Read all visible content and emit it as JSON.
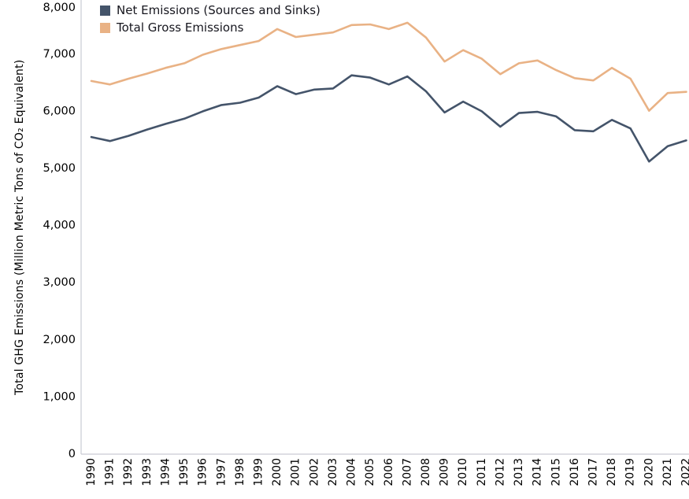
{
  "chart_data": {
    "type": "line",
    "title": "",
    "xlabel": "",
    "ylabel": "Total GHG Emissions (Million Metric Tons of CO₂ Equivalent)",
    "ylim": [
      0,
      8000
    ],
    "grid": false,
    "legend_position": "top-left-inside",
    "categories": [
      "1990",
      "1991",
      "1992",
      "1993",
      "1994",
      "1995",
      "1996",
      "1997",
      "1998",
      "1999",
      "2000",
      "2001",
      "2002",
      "2003",
      "2004",
      "2005",
      "2006",
      "2007",
      "2008",
      "2009",
      "2010",
      "2011",
      "2012",
      "2013",
      "2014",
      "2015",
      "2016",
      "2017",
      "2018",
      "2019",
      "2020",
      "2021",
      "2022"
    ],
    "series": [
      {
        "name": "Net Emissions (Sources and Sinks)",
        "color": "#44546A",
        "values": [
          5550,
          5480,
          5570,
          5680,
          5780,
          5870,
          6000,
          6110,
          6150,
          6240,
          6440,
          6300,
          6380,
          6400,
          6630,
          6590,
          6470,
          6610,
          6350,
          5980,
          6170,
          6000,
          5730,
          5970,
          5990,
          5910,
          5670,
          5650,
          5850,
          5700,
          5120,
          5390,
          5490
        ]
      },
      {
        "name": "Total Gross Emissions",
        "color": "#E9B285",
        "values": [
          6530,
          6470,
          6570,
          6660,
          6760,
          6840,
          6990,
          7090,
          7160,
          7230,
          7440,
          7300,
          7340,
          7380,
          7510,
          7520,
          7440,
          7550,
          7290,
          6870,
          7070,
          6920,
          6650,
          6840,
          6890,
          6720,
          6580,
          6540,
          6760,
          6570,
          6010,
          6320,
          6340
        ]
      }
    ],
    "y_ticks": {
      "values": [
        0,
        1000,
        2000,
        3000,
        4000,
        5000,
        6000,
        7000,
        8000
      ],
      "labels": [
        "0",
        "1,000",
        "2,000",
        "3,000",
        "4,000",
        "5,000",
        "6,000",
        "7,000",
        "8,000"
      ]
    },
    "axis_color": "#C9CBD4"
  }
}
